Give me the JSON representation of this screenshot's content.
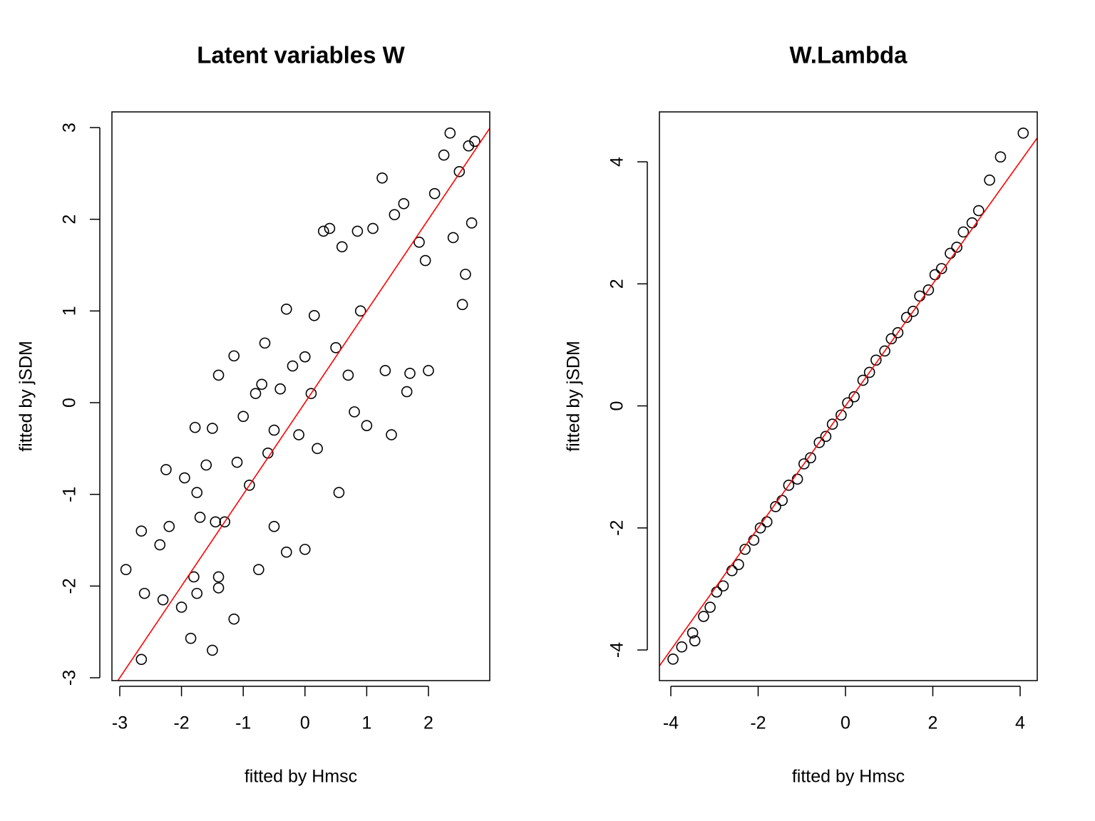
{
  "chart_data": [
    {
      "type": "scatter",
      "title": "Latent variables W",
      "xlabel": "fitted by Hmsc",
      "ylabel": "fitted by jSDM",
      "marker_color": "#000000",
      "x": [
        -2.9,
        -2.65,
        -2.6,
        -2.65,
        -2.35,
        -2.3,
        -2.25,
        -2.2,
        -2.0,
        -1.95,
        -1.85,
        -1.8,
        -1.75,
        -1.78,
        -1.75,
        -1.7,
        -1.6,
        -1.5,
        -1.5,
        -1.45,
        -1.4,
        -1.4,
        -1.4,
        -1.3,
        -1.15,
        -1.15,
        -1.1,
        -1.0,
        -0.9,
        -0.8,
        -0.75,
        -0.7,
        -0.65,
        -0.6,
        -0.5,
        -0.5,
        -0.4,
        -0.3,
        -0.3,
        -0.2,
        -0.1,
        0,
        0,
        0.1,
        0.15,
        0.2,
        0.3,
        0.4,
        0.5,
        0.55,
        0.6,
        0.7,
        0.8,
        0.85,
        0.9,
        1.0,
        1.1,
        1.25,
        1.3,
        1.4,
        1.45,
        1.6,
        1.65,
        1.7,
        1.85,
        1.95,
        2.0,
        2.1,
        2.25,
        2.35,
        2.4,
        2.5,
        2.55,
        2.6,
        2.65,
        2.7,
        2.75
      ],
      "values": [
        -1.82,
        -2.8,
        -2.08,
        -1.4,
        -1.55,
        -2.15,
        -0.73,
        -1.35,
        -2.23,
        -0.82,
        -2.57,
        -1.9,
        -2.08,
        -0.27,
        -0.98,
        -1.25,
        -0.68,
        -2.7,
        -0.28,
        -1.3,
        -1.9,
        -2.02,
        0.3,
        -1.3,
        -2.36,
        0.51,
        -0.65,
        -0.15,
        -0.9,
        0.1,
        -1.82,
        0.2,
        0.65,
        -0.55,
        -0.3,
        -1.35,
        0.15,
        -1.63,
        1.02,
        0.4,
        -0.35,
        -1.6,
        0.5,
        0.1,
        0.95,
        -0.5,
        1.87,
        1.9,
        0.6,
        -0.98,
        1.7,
        0.3,
        -0.1,
        1.87,
        1.0,
        -0.25,
        1.9,
        2.45,
        0.35,
        -0.35,
        2.05,
        2.17,
        0.12,
        0.32,
        1.75,
        1.55,
        0.35,
        2.28,
        2.7,
        2.94,
        1.8,
        2.52,
        1.07,
        1.4,
        2.8,
        1.96,
        2.85
      ],
      "xlim": [
        -3.127,
        2.993
      ],
      "ylim": [
        -3.031,
        3.171
      ],
      "xticks": [
        -3,
        -2,
        -1,
        0,
        1,
        2
      ],
      "yticks": [
        -3,
        -2,
        -1,
        0,
        1,
        2,
        3
      ],
      "reference_line": {
        "intercept": 0,
        "slope": 1,
        "color": "#ff0000"
      }
    },
    {
      "type": "scatter",
      "title": "W.Lambda",
      "xlabel": "fitted by Hmsc",
      "ylabel": "fitted by jSDM",
      "marker_color": "#000000",
      "x": [
        -3.95,
        -3.75,
        -3.5,
        -3.45,
        -3.25,
        -3.1,
        -2.95,
        -2.8,
        -2.6,
        -2.45,
        -2.3,
        -2.1,
        -1.95,
        -1.8,
        -1.6,
        -1.45,
        -1.3,
        -1.1,
        -0.95,
        -0.8,
        -0.6,
        -0.45,
        -0.3,
        -0.1,
        0.05,
        0.2,
        0.4,
        0.55,
        0.7,
        0.9,
        1.05,
        1.2,
        1.4,
        1.55,
        1.7,
        1.9,
        2.05,
        2.2,
        2.4,
        2.55,
        2.7,
        2.9,
        3.05,
        3.3,
        3.55,
        4.07
      ],
      "values": [
        -4.15,
        -3.95,
        -3.72,
        -3.85,
        -3.45,
        -3.3,
        -3.05,
        -2.95,
        -2.7,
        -2.6,
        -2.35,
        -2.2,
        -2.0,
        -1.9,
        -1.65,
        -1.55,
        -1.3,
        -1.2,
        -0.95,
        -0.85,
        -0.6,
        -0.5,
        -0.3,
        -0.15,
        0.05,
        0.15,
        0.42,
        0.55,
        0.75,
        0.9,
        1.1,
        1.2,
        1.45,
        1.55,
        1.8,
        1.9,
        2.15,
        2.25,
        2.5,
        2.6,
        2.85,
        3.0,
        3.2,
        3.7,
        4.08,
        4.47
      ],
      "xlim": [
        -4.261,
        4.392
      ],
      "ylim": [
        -4.502,
        4.818
      ],
      "xticks": [
        -4,
        -2,
        0,
        2,
        4
      ],
      "yticks": [
        -4,
        -2,
        0,
        2,
        4
      ],
      "reference_line": {
        "intercept": 0,
        "slope": 1,
        "color": "#ff0000"
      }
    }
  ]
}
